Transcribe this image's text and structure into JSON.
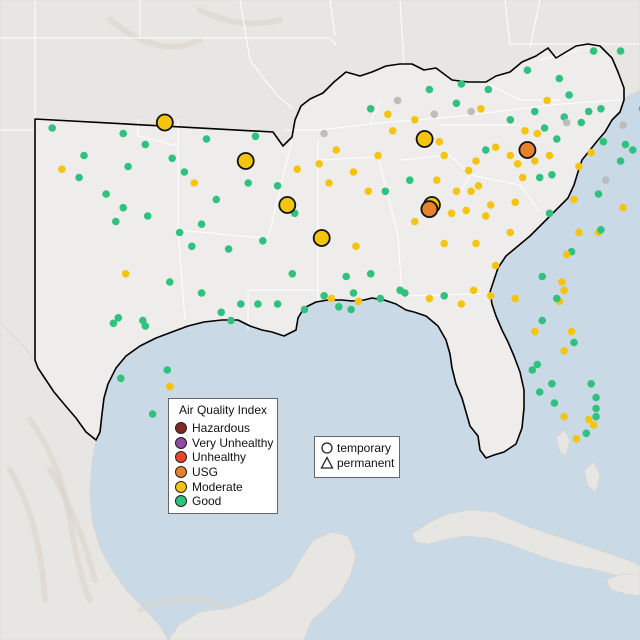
{
  "map": {
    "colors": {
      "ocean": "#c9d9e6",
      "land": "#e8e6e3",
      "focus_land": "#eeedeb",
      "state_line": "#ffffff",
      "outline": "#000000",
      "terrain": "#d9d3cb"
    }
  },
  "legend": {
    "title": "Air Quality Index",
    "items": [
      {
        "label": "Hazardous",
        "color": "#7e2a22"
      },
      {
        "label": "Very Unhealthy",
        "color": "#8f4aa6"
      },
      {
        "label": "Unhealthy",
        "color": "#e8452f"
      },
      {
        "label": "USG",
        "color": "#e8812b"
      },
      {
        "label": "Moderate",
        "color": "#f5c40f"
      },
      {
        "label": "Good",
        "color": "#2ec27e"
      }
    ]
  },
  "monitor_types": {
    "items": [
      {
        "label": "temporary",
        "shape": "circle-icon"
      },
      {
        "label": "permanent",
        "shape": "triangle-icon"
      }
    ]
  },
  "monitors": {
    "large": [
      {
        "lon": -97.7,
        "lat": 36.8,
        "aqi": "Moderate"
      },
      {
        "lon": -94.4,
        "lat": 35.4,
        "aqi": "Moderate"
      },
      {
        "lon": -92.7,
        "lat": 33.8,
        "aqi": "Moderate"
      },
      {
        "lon": -91.3,
        "lat": 32.6,
        "aqi": "Moderate"
      },
      {
        "lon": -87.1,
        "lat": 36.2,
        "aqi": "Moderate"
      },
      {
        "lon": -86.8,
        "lat": 33.8,
        "aqi": "Moderate"
      },
      {
        "lon": -86.9,
        "lat": 33.65,
        "aqi": "USG"
      },
      {
        "lon": -82.9,
        "lat": 35.8,
        "aqi": "USG"
      }
    ],
    "small": [
      {
        "lon": -102.3,
        "lat": 36.6,
        "aqi": "Good"
      },
      {
        "lon": -101.0,
        "lat": 35.6,
        "aqi": "Good"
      },
      {
        "lon": -101.9,
        "lat": 35.1,
        "aqi": "Moderate"
      },
      {
        "lon": -101.2,
        "lat": 34.8,
        "aqi": "Good"
      },
      {
        "lon": -99.4,
        "lat": 36.4,
        "aqi": "Good"
      },
      {
        "lon": -98.5,
        "lat": 36.0,
        "aqi": "Good"
      },
      {
        "lon": -99.2,
        "lat": 35.2,
        "aqi": "Good"
      },
      {
        "lon": -100.1,
        "lat": 34.2,
        "aqi": "Good"
      },
      {
        "lon": -99.7,
        "lat": 33.2,
        "aqi": "Good"
      },
      {
        "lon": -99.4,
        "lat": 33.7,
        "aqi": "Good"
      },
      {
        "lon": -98.4,
        "lat": 33.4,
        "aqi": "Good"
      },
      {
        "lon": -97.4,
        "lat": 35.5,
        "aqi": "Good"
      },
      {
        "lon": -96.9,
        "lat": 35.0,
        "aqi": "Good"
      },
      {
        "lon": -96.5,
        "lat": 34.6,
        "aqi": "Moderate"
      },
      {
        "lon": -96.0,
        "lat": 36.2,
        "aqi": "Good"
      },
      {
        "lon": -95.6,
        "lat": 34.0,
        "aqi": "Good"
      },
      {
        "lon": -96.2,
        "lat": 33.1,
        "aqi": "Good"
      },
      {
        "lon": -97.1,
        "lat": 32.8,
        "aqi": "Good"
      },
      {
        "lon": -96.6,
        "lat": 32.3,
        "aqi": "Good"
      },
      {
        "lon": -95.1,
        "lat": 32.2,
        "aqi": "Good"
      },
      {
        "lon": -99.3,
        "lat": 31.3,
        "aqi": "Moderate"
      },
      {
        "lon": -97.5,
        "lat": 31.0,
        "aqi": "Good"
      },
      {
        "lon": -96.2,
        "lat": 30.6,
        "aqi": "Good"
      },
      {
        "lon": -94.6,
        "lat": 30.2,
        "aqi": "Good"
      },
      {
        "lon": -93.9,
        "lat": 30.2,
        "aqi": "Good"
      },
      {
        "lon": -95.4,
        "lat": 29.9,
        "aqi": "Good"
      },
      {
        "lon": -95.0,
        "lat": 29.6,
        "aqi": "Good"
      },
      {
        "lon": -99.8,
        "lat": 29.5,
        "aqi": "Good"
      },
      {
        "lon": -99.6,
        "lat": 29.7,
        "aqi": "Good"
      },
      {
        "lon": -98.5,
        "lat": 29.4,
        "aqi": "Good"
      },
      {
        "lon": -98.6,
        "lat": 29.6,
        "aqi": "Good"
      },
      {
        "lon": -97.6,
        "lat": 27.8,
        "aqi": "Good"
      },
      {
        "lon": -97.5,
        "lat": 27.2,
        "aqi": "Moderate"
      },
      {
        "lon": -99.5,
        "lat": 27.5,
        "aqi": "Good"
      },
      {
        "lon": -98.2,
        "lat": 26.2,
        "aqi": "Good"
      },
      {
        "lon": -97.4,
        "lat": 25.9,
        "aqi": "Moderate"
      },
      {
        "lon": -94.0,
        "lat": 36.3,
        "aqi": "Good"
      },
      {
        "lon": -94.3,
        "lat": 34.6,
        "aqi": "Good"
      },
      {
        "lon": -93.1,
        "lat": 34.5,
        "aqi": "Good"
      },
      {
        "lon": -92.3,
        "lat": 35.1,
        "aqi": "Moderate"
      },
      {
        "lon": -91.4,
        "lat": 35.3,
        "aqi": "Moderate"
      },
      {
        "lon": -90.7,
        "lat": 35.8,
        "aqi": "Moderate"
      },
      {
        "lon": -91.0,
        "lat": 34.6,
        "aqi": "Moderate"
      },
      {
        "lon": -92.4,
        "lat": 33.5,
        "aqi": "Good"
      },
      {
        "lon": -93.7,
        "lat": 32.5,
        "aqi": "Good"
      },
      {
        "lon": -92.5,
        "lat": 31.3,
        "aqi": "Good"
      },
      {
        "lon": -93.1,
        "lat": 30.2,
        "aqi": "Good"
      },
      {
        "lon": -92.0,
        "lat": 30.0,
        "aqi": "Good"
      },
      {
        "lon": -91.2,
        "lat": 30.5,
        "aqi": "Good"
      },
      {
        "lon": -90.9,
        "lat": 30.4,
        "aqi": "Moderate"
      },
      {
        "lon": -90.6,
        "lat": 30.1,
        "aqi": "Good"
      },
      {
        "lon": -90.1,
        "lat": 30.0,
        "aqi": "Good"
      },
      {
        "lon": -89.8,
        "lat": 30.3,
        "aqi": "Moderate"
      },
      {
        "lon": -90.0,
        "lat": 30.6,
        "aqi": "Good"
      },
      {
        "lon": -90.3,
        "lat": 31.2,
        "aqi": "Good"
      },
      {
        "lon": -89.9,
        "lat": 32.3,
        "aqi": "Moderate"
      },
      {
        "lon": -89.3,
        "lat": 31.3,
        "aqi": "Good"
      },
      {
        "lon": -88.9,
        "lat": 30.4,
        "aqi": "Good"
      },
      {
        "lon": -88.1,
        "lat": 30.7,
        "aqi": "Good"
      },
      {
        "lon": -89.4,
        "lat": 34.3,
        "aqi": "Moderate"
      },
      {
        "lon": -88.7,
        "lat": 34.3,
        "aqi": "Good"
      },
      {
        "lon": -90.0,
        "lat": 35.0,
        "aqi": "Moderate"
      },
      {
        "lon": -89.0,
        "lat": 35.6,
        "aqi": "Moderate"
      },
      {
        "lon": -88.4,
        "lat": 36.5,
        "aqi": "Moderate"
      },
      {
        "lon": -87.5,
        "lat": 36.9,
        "aqi": "Moderate"
      },
      {
        "lon": -88.6,
        "lat": 37.1,
        "aqi": "Moderate"
      },
      {
        "lon": -86.5,
        "lat": 36.1,
        "aqi": "Moderate"
      },
      {
        "lon": -86.3,
        "lat": 35.6,
        "aqi": "Moderate"
      },
      {
        "lon": -85.3,
        "lat": 35.05,
        "aqi": "Moderate"
      },
      {
        "lon": -85.0,
        "lat": 35.4,
        "aqi": "Moderate"
      },
      {
        "lon": -84.2,
        "lat": 35.9,
        "aqi": "Moderate"
      },
      {
        "lon": -83.6,
        "lat": 35.6,
        "aqi": "Moderate"
      },
      {
        "lon": -83.0,
        "lat": 36.5,
        "aqi": "Moderate"
      },
      {
        "lon": -82.5,
        "lat": 36.4,
        "aqi": "Moderate"
      },
      {
        "lon": -87.7,
        "lat": 34.7,
        "aqi": "Good"
      },
      {
        "lon": -86.6,
        "lat": 34.7,
        "aqi": "Moderate"
      },
      {
        "lon": -85.8,
        "lat": 34.3,
        "aqi": "Moderate"
      },
      {
        "lon": -86.0,
        "lat": 33.5,
        "aqi": "Moderate"
      },
      {
        "lon": -85.4,
        "lat": 33.6,
        "aqi": "Moderate"
      },
      {
        "lon": -87.5,
        "lat": 33.2,
        "aqi": "Moderate"
      },
      {
        "lon": -86.3,
        "lat": 32.4,
        "aqi": "Moderate"
      },
      {
        "lon": -85.0,
        "lat": 32.4,
        "aqi": "Moderate"
      },
      {
        "lon": -87.9,
        "lat": 30.6,
        "aqi": "Good"
      },
      {
        "lon": -86.9,
        "lat": 30.4,
        "aqi": "Moderate"
      },
      {
        "lon": -86.3,
        "lat": 30.5,
        "aqi": "Good"
      },
      {
        "lon": -85.6,
        "lat": 30.2,
        "aqi": "Moderate"
      },
      {
        "lon": -85.1,
        "lat": 30.7,
        "aqi": "Moderate"
      },
      {
        "lon": -84.4,
        "lat": 30.5,
        "aqi": "Moderate"
      },
      {
        "lon": -83.4,
        "lat": 30.4,
        "aqi": "Moderate"
      },
      {
        "lon": -82.6,
        "lat": 29.2,
        "aqi": "Moderate"
      },
      {
        "lon": -82.3,
        "lat": 29.6,
        "aqi": "Good"
      },
      {
        "lon": -82.5,
        "lat": 28.0,
        "aqi": "Good"
      },
      {
        "lon": -82.7,
        "lat": 27.8,
        "aqi": "Good"
      },
      {
        "lon": -81.9,
        "lat": 27.3,
        "aqi": "Good"
      },
      {
        "lon": -82.4,
        "lat": 27.0,
        "aqi": "Good"
      },
      {
        "lon": -81.8,
        "lat": 26.6,
        "aqi": "Good"
      },
      {
        "lon": -81.4,
        "lat": 26.1,
        "aqi": "Moderate"
      },
      {
        "lon": -80.4,
        "lat": 26.0,
        "aqi": "Moderate"
      },
      {
        "lon": -80.2,
        "lat": 25.8,
        "aqi": "Moderate"
      },
      {
        "lon": -80.1,
        "lat": 26.4,
        "aqi": "Good"
      },
      {
        "lon": -80.1,
        "lat": 26.8,
        "aqi": "Good"
      },
      {
        "lon": -80.3,
        "lat": 27.3,
        "aqi": "Good"
      },
      {
        "lon": -80.1,
        "lat": 26.1,
        "aqi": "Good"
      },
      {
        "lon": -80.5,
        "lat": 25.5,
        "aqi": "Good"
      },
      {
        "lon": -80.9,
        "lat": 25.3,
        "aqi": "Moderate"
      },
      {
        "lon": -81.4,
        "lat": 28.5,
        "aqi": "Moderate"
      },
      {
        "lon": -81.1,
        "lat": 29.2,
        "aqi": "Moderate"
      },
      {
        "lon": -81.0,
        "lat": 28.8,
        "aqi": "Good"
      },
      {
        "lon": -81.6,
        "lat": 30.3,
        "aqi": "Moderate"
      },
      {
        "lon": -81.7,
        "lat": 30.4,
        "aqi": "Good"
      },
      {
        "lon": -81.4,
        "lat": 30.7,
        "aqi": "Moderate"
      },
      {
        "lon": -81.5,
        "lat": 31.0,
        "aqi": "Moderate"
      },
      {
        "lon": -81.1,
        "lat": 32.1,
        "aqi": "Good"
      },
      {
        "lon": -81.3,
        "lat": 32.0,
        "aqi": "Moderate"
      },
      {
        "lon": -80.8,
        "lat": 32.8,
        "aqi": "Moderate"
      },
      {
        "lon": -80.0,
        "lat": 32.8,
        "aqi": "Moderate"
      },
      {
        "lon": -79.9,
        "lat": 32.9,
        "aqi": "Good"
      },
      {
        "lon": -81.0,
        "lat": 34.0,
        "aqi": "Moderate"
      },
      {
        "lon": -82.4,
        "lat": 34.8,
        "aqi": "Good"
      },
      {
        "lon": -81.9,
        "lat": 34.9,
        "aqi": "Good"
      },
      {
        "lon": -80.0,
        "lat": 34.2,
        "aqi": "Good"
      },
      {
        "lon": -79.0,
        "lat": 33.7,
        "aqi": "Moderate"
      },
      {
        "lon": -84.4,
        "lat": 33.8,
        "aqi": "Moderate"
      },
      {
        "lon": -84.6,
        "lat": 33.4,
        "aqi": "Moderate"
      },
      {
        "lon": -83.6,
        "lat": 32.8,
        "aqi": "Moderate"
      },
      {
        "lon": -83.4,
        "lat": 33.9,
        "aqi": "Moderate"
      },
      {
        "lon": -82.0,
        "lat": 33.5,
        "aqi": "Good"
      },
      {
        "lon": -85.2,
        "lat": 34.3,
        "aqi": "Moderate"
      },
      {
        "lon": -84.9,
        "lat": 34.5,
        "aqi": "Moderate"
      },
      {
        "lon": -84.2,
        "lat": 31.6,
        "aqi": "Moderate"
      },
      {
        "lon": -82.3,
        "lat": 31.2,
        "aqi": "Good"
      },
      {
        "lon": -80.8,
        "lat": 35.2,
        "aqi": "Moderate"
      },
      {
        "lon": -80.3,
        "lat": 35.7,
        "aqi": "Moderate"
      },
      {
        "lon": -79.8,
        "lat": 36.1,
        "aqi": "Good"
      },
      {
        "lon": -78.6,
        "lat": 35.8,
        "aqi": "Good"
      },
      {
        "lon": -78.9,
        "lat": 36.0,
        "aqi": "Good"
      },
      {
        "lon": -79.1,
        "lat": 35.4,
        "aqi": "Good"
      },
      {
        "lon": -77.9,
        "lat": 34.2,
        "aqi": "Good"
      },
      {
        "lon": -77.4,
        "lat": 35.6,
        "aqi": "Good"
      },
      {
        "lon": -77.0,
        "lat": 35.1,
        "aqi": "Moderate"
      },
      {
        "lon": -76.0,
        "lat": 36.2,
        "aqi": "Good"
      },
      {
        "lon": -76.3,
        "lat": 36.8,
        "aqi": "Good"
      },
      {
        "lon": -77.4,
        "lat": 37.5,
        "aqi": "Good"
      },
      {
        "lon": -77.3,
        "lat": 38.0,
        "aqi": "Good"
      },
      {
        "lon": -78.2,
        "lat": 37.3,
        "aqi": "Good"
      },
      {
        "lon": -79.9,
        "lat": 37.3,
        "aqi": "Good"
      },
      {
        "lon": -80.4,
        "lat": 37.2,
        "aqi": "Good"
      },
      {
        "lon": -81.2,
        "lat": 37.8,
        "aqi": "Good"
      },
      {
        "lon": -82.1,
        "lat": 37.6,
        "aqi": "Moderate"
      },
      {
        "lon": -82.6,
        "lat": 37.2,
        "aqi": "Good"
      },
      {
        "lon": -82.2,
        "lat": 36.6,
        "aqi": "Good"
      },
      {
        "lon": -81.7,
        "lat": 36.2,
        "aqi": "Good"
      },
      {
        "lon": -82.0,
        "lat": 35.6,
        "aqi": "Moderate"
      },
      {
        "lon": -82.6,
        "lat": 35.4,
        "aqi": "Moderate"
      },
      {
        "lon": -83.3,
        "lat": 35.3,
        "aqi": "Moderate"
      },
      {
        "lon": -83.1,
        "lat": 34.8,
        "aqi": "Moderate"
      },
      {
        "lon": -84.6,
        "lat": 35.8,
        "aqi": "Good"
      },
      {
        "lon": -81.4,
        "lat": 37.0,
        "aqi": "Good"
      },
      {
        "lon": -80.7,
        "lat": 36.8,
        "aqi": "Good"
      },
      {
        "lon": -83.6,
        "lat": 36.9,
        "aqi": "Good"
      },
      {
        "lon": -84.8,
        "lat": 37.3,
        "aqi": "Moderate"
      },
      {
        "lon": -85.8,
        "lat": 37.5,
        "aqi": "Good"
      },
      {
        "lon": -84.5,
        "lat": 38.0,
        "aqi": "Good"
      },
      {
        "lon": -85.6,
        "lat": 38.2,
        "aqi": "Good"
      },
      {
        "lon": -86.9,
        "lat": 38.0,
        "aqi": "Good"
      },
      {
        "lon": -82.9,
        "lat": 38.7,
        "aqi": "Good"
      },
      {
        "lon": -81.6,
        "lat": 38.4,
        "aqi": "Good"
      },
      {
        "lon": -80.2,
        "lat": 39.4,
        "aqi": "Good"
      },
      {
        "lon": -79.1,
        "lat": 39.4,
        "aqi": "Good"
      },
      {
        "lon": -77.7,
        "lat": 39.0,
        "aqi": "Good"
      },
      {
        "lon": -76.9,
        "lat": 39.3,
        "aqi": "Good"
      },
      {
        "lon": -75.9,
        "lat": 37.7,
        "aqi": "Good"
      },
      {
        "lon": -89.3,
        "lat": 37.3,
        "aqi": "Good"
      },
      {
        "lon": -88.2,
        "lat": 37.6,
        "aqi": "None"
      },
      {
        "lon": -86.7,
        "lat": 37.1,
        "aqi": "None"
      },
      {
        "lon": -85.2,
        "lat": 37.2,
        "aqi": "None"
      },
      {
        "lon": -81.3,
        "lat": 36.8,
        "aqi": "None"
      },
      {
        "lon": -79.0,
        "lat": 36.7,
        "aqi": "None"
      },
      {
        "lon": -91.2,
        "lat": 36.4,
        "aqi": "None"
      },
      {
        "lon": -79.7,
        "lat": 34.7,
        "aqi": "None"
      }
    ]
  }
}
